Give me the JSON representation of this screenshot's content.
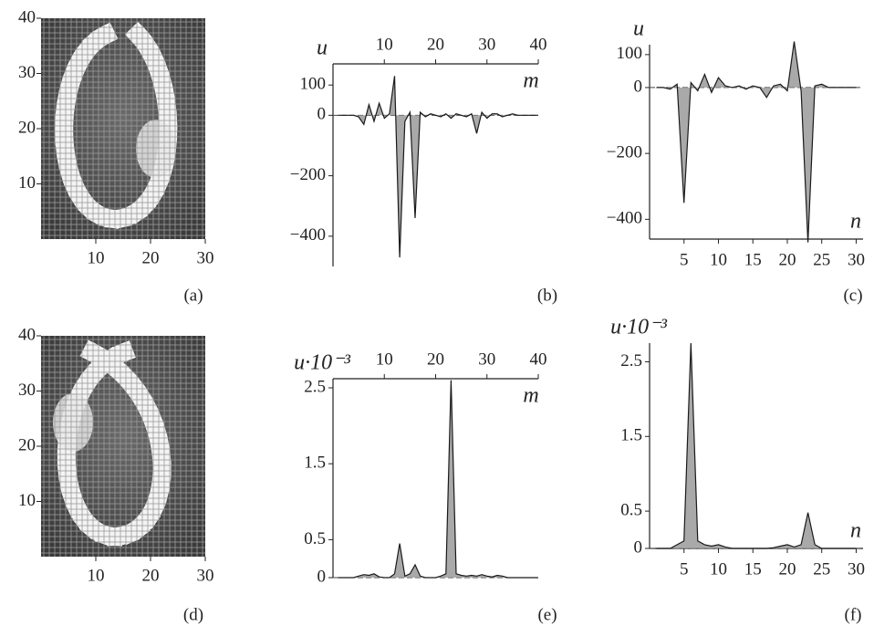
{
  "chart_data": [
    {
      "type": "image",
      "caption": "(a)",
      "xlim": [
        0,
        30
      ],
      "ylim": [
        0,
        40
      ],
      "xticks": [
        10,
        20,
        30
      ],
      "yticks": [
        10,
        20,
        30,
        40
      ]
    },
    {
      "type": "area",
      "caption": "(b)",
      "y_label": "u",
      "x_label": "m",
      "x_axis": "top",
      "color": "#9a9a9a",
      "x": [
        1,
        2,
        3,
        4,
        5,
        6,
        7,
        8,
        9,
        10,
        11,
        12,
        13,
        14,
        15,
        16,
        17,
        18,
        19,
        20,
        21,
        22,
        23,
        24,
        25,
        26,
        27,
        28,
        29,
        30,
        31,
        32,
        33,
        34,
        35,
        36,
        37,
        38,
        39,
        40
      ],
      "values": [
        0,
        0,
        0,
        0,
        -5,
        -30,
        35,
        -20,
        40,
        -10,
        5,
        130,
        -470,
        -20,
        10,
        -340,
        10,
        -5,
        5,
        0,
        -5,
        5,
        -10,
        5,
        0,
        -5,
        5,
        -60,
        10,
        -10,
        5,
        5,
        -5,
        0,
        5,
        0,
        0,
        0,
        0,
        0
      ],
      "xlim": [
        0,
        40
      ],
      "xticks": [
        10,
        20,
        30,
        40
      ],
      "ylim": [
        -500,
        170
      ],
      "yticks": [
        100,
        0,
        {
          "value": -200,
          "label": "−200"
        },
        {
          "value": -400,
          "label": "−400"
        }
      ]
    },
    {
      "type": "area",
      "caption": "(c)",
      "y_label": "u",
      "x_label": "n",
      "x_axis": "bottom",
      "color": "#9a9a9a",
      "x": [
        1,
        2,
        3,
        4,
        5,
        6,
        7,
        8,
        9,
        10,
        11,
        12,
        13,
        14,
        15,
        16,
        17,
        18,
        19,
        20,
        21,
        22,
        23,
        24,
        25,
        26,
        27,
        28,
        29,
        30
      ],
      "values": [
        0,
        0,
        -5,
        10,
        -350,
        15,
        -10,
        40,
        -15,
        30,
        5,
        0,
        5,
        -5,
        5,
        0,
        -30,
        5,
        10,
        -10,
        140,
        -10,
        -470,
        5,
        10,
        0,
        0,
        0,
        0,
        0
      ],
      "xlim": [
        0,
        31
      ],
      "xticks": [
        5,
        10,
        15,
        20,
        25,
        30
      ],
      "ylim": [
        -460,
        130
      ],
      "yticks": [
        100,
        0,
        {
          "value": -200,
          "label": "−200"
        },
        {
          "value": -400,
          "label": "−400"
        }
      ]
    },
    {
      "type": "image",
      "caption": "(d)",
      "xlim": [
        0,
        30
      ],
      "ylim": [
        0,
        40
      ],
      "xticks": [
        10,
        20,
        30
      ],
      "yticks": [
        10,
        20,
        30,
        40
      ]
    },
    {
      "type": "area",
      "caption": "(e)",
      "y_label": "u·10⁻³",
      "x_label": "m",
      "x_axis": "top",
      "color": "#9a9a9a",
      "x": [
        1,
        2,
        3,
        4,
        5,
        6,
        7,
        8,
        9,
        10,
        11,
        12,
        13,
        14,
        15,
        16,
        17,
        18,
        19,
        20,
        21,
        22,
        23,
        24,
        25,
        26,
        27,
        28,
        29,
        30,
        31,
        32,
        33,
        34,
        35,
        36,
        37,
        38,
        39,
        40
      ],
      "values": [
        0,
        0,
        0,
        0,
        0.02,
        0.04,
        0.03,
        0.05,
        0.01,
        0,
        0,
        0.05,
        0.45,
        0.02,
        0.05,
        0.17,
        0.02,
        0,
        0,
        0,
        0.02,
        0.05,
        2.6,
        0.05,
        0.03,
        0.02,
        0.03,
        0.02,
        0.04,
        0.02,
        0.01,
        0.03,
        0.02,
        0,
        0,
        0,
        0,
        0,
        0,
        0
      ],
      "xlim": [
        0,
        40
      ],
      "xticks": [
        10,
        20,
        30,
        40
      ],
      "ylim": [
        0,
        2.62
      ],
      "yticks": [
        0,
        0.5,
        1.5,
        2.5
      ]
    },
    {
      "type": "area",
      "caption": "(f)",
      "y_label": "u·10⁻³",
      "x_label": "n",
      "x_axis": "bottom",
      "color": "#9a9a9a",
      "x": [
        1,
        2,
        3,
        4,
        5,
        6,
        7,
        8,
        9,
        10,
        11,
        12,
        13,
        14,
        15,
        16,
        17,
        18,
        19,
        20,
        21,
        22,
        23,
        24,
        25,
        26,
        27,
        28,
        29,
        30
      ],
      "values": [
        0,
        0,
        0,
        0.05,
        0.1,
        2.75,
        0.1,
        0.05,
        0.03,
        0.05,
        0.02,
        0,
        0,
        0,
        0,
        0,
        0,
        0.01,
        0.03,
        0.05,
        0.02,
        0.05,
        0.48,
        0.05,
        0,
        0,
        0,
        0,
        0,
        0
      ],
      "xlim": [
        0,
        31
      ],
      "xticks": [
        5,
        10,
        15,
        20,
        25,
        30
      ],
      "ylim": [
        0,
        2.75
      ],
      "yticks": [
        0,
        0.5,
        1.5,
        2.5
      ]
    }
  ]
}
